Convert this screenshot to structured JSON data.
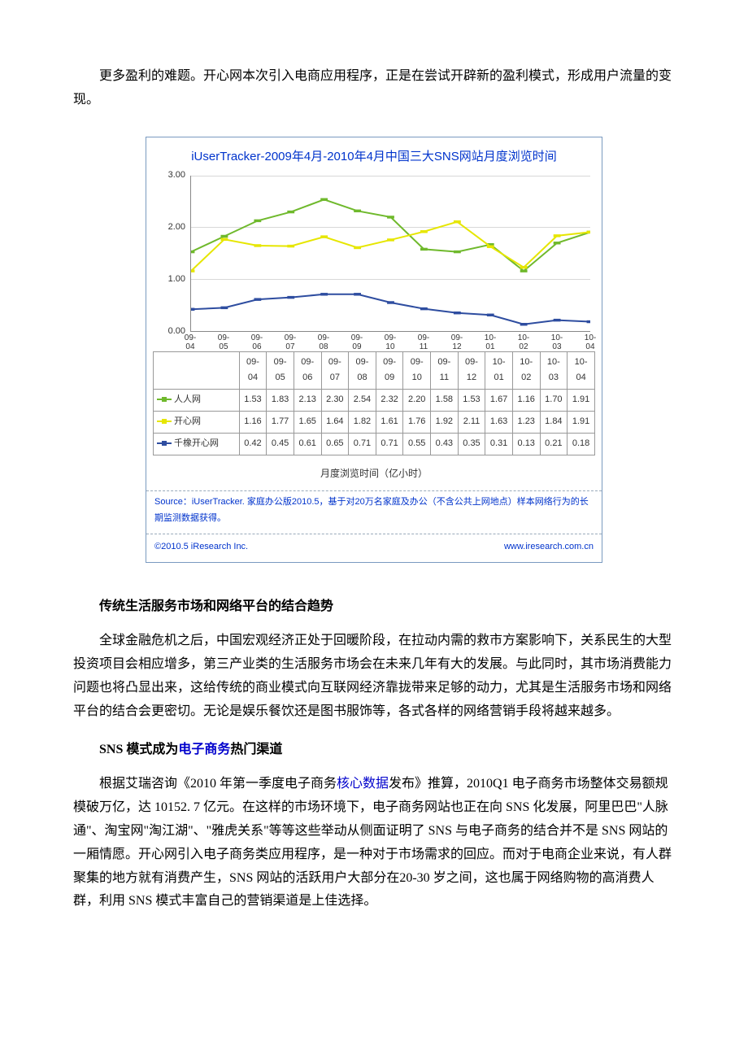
{
  "intro_para": "更多盈利的难题。开心网本次引入电商应用程序，正是在尝试开辟新的盈利模式，形成用户流量的变现。",
  "chart": {
    "type": "line",
    "title": "iUserTracker-2009年4月-2010年4月中国三大SNS网站月度浏览时间",
    "x_labels": [
      "09-04",
      "09-05",
      "09-06",
      "09-07",
      "09-08",
      "09-09",
      "09-10",
      "09-11",
      "09-12",
      "10-01",
      "10-02",
      "10-03",
      "10-04"
    ],
    "y_ticks": [
      0.0,
      1.0,
      2.0,
      3.0
    ],
    "ylim": [
      0,
      3
    ],
    "series": [
      {
        "name": "人人网",
        "color": "#6fb92c",
        "marker": "square",
        "values": [
          1.53,
          1.83,
          2.13,
          2.3,
          2.54,
          2.32,
          2.2,
          1.58,
          1.53,
          1.67,
          1.16,
          1.7,
          1.91
        ]
      },
      {
        "name": "开心网",
        "color": "#e6e600",
        "marker": "diamond",
        "values": [
          1.16,
          1.77,
          1.65,
          1.64,
          1.82,
          1.61,
          1.76,
          1.92,
          2.11,
          1.63,
          1.23,
          1.84,
          1.91
        ]
      },
      {
        "name": "千橡开心网",
        "color": "#2e4da0",
        "marker": "square",
        "values": [
          0.42,
          0.45,
          0.61,
          0.65,
          0.71,
          0.71,
          0.55,
          0.43,
          0.35,
          0.31,
          0.13,
          0.21,
          0.18
        ]
      }
    ],
    "axis_caption": "月度浏览时间（亿小时）",
    "source_note": "Source：iUserTracker. 家庭办公版2010.5，基于对20万名家庭及办公（不含公共上网地点）样本网络行为的长期监测数据获得。",
    "footer_left": "©2010.5 iResearch Inc.",
    "footer_right": "www.iresearch.com.cn",
    "grid_color": "#d8d8d8",
    "border_color": "#7a9ac0",
    "line_width": 2,
    "marker_size": 5
  },
  "h1": "传统生活服务市场和网络平台的结合趋势",
  "p1": "全球金融危机之后，中国宏观经济正处于回暖阶段，在拉动内需的救市方案影响下，关系民生的大型投资项目会相应增多，第三产业类的生活服务市场会在未来几年有大的发展。与此同时，其市场消费能力问题也将凸显出来，这给传统的商业模式向互联网经济靠拢带来足够的动力，尤其是生活服务市场和网络平台的结合会更密切。无论是娱乐餐饮还是图书服饰等，各式各样的网络营销手段将越来越多。",
  "h2_pre": "SNS 模式成为",
  "h2_link": "电子商务",
  "h2_post": "热门渠道",
  "p2_a": "根据艾瑞咨询《2010 年第一季度电子商务",
  "p2_link": "核心数据",
  "p2_b": "发布》推算，2010Q1 电子商务市场整体交易额规模破万亿，达 10152. 7 亿元。在这样的市场环境下，电子商务网站也正在向 SNS 化发展，阿里巴巴\"人脉通\"、淘宝网\"淘江湖\"、\"雅虎关系\"等等这些举动从侧面证明了 SNS 与电子商务的结合并不是 SNS 网站的一厢情愿。开心网引入电子商务类应用程序，是一种对于市场需求的回应。而对于电商企业来说，有人群聚集的地方就有消费产生，SNS 网站的活跃用户大部分在20-30 岁之间，这也属于网络购物的高消费人群，利用 SNS 模式丰富自己的营销渠道是上佳选择。"
}
